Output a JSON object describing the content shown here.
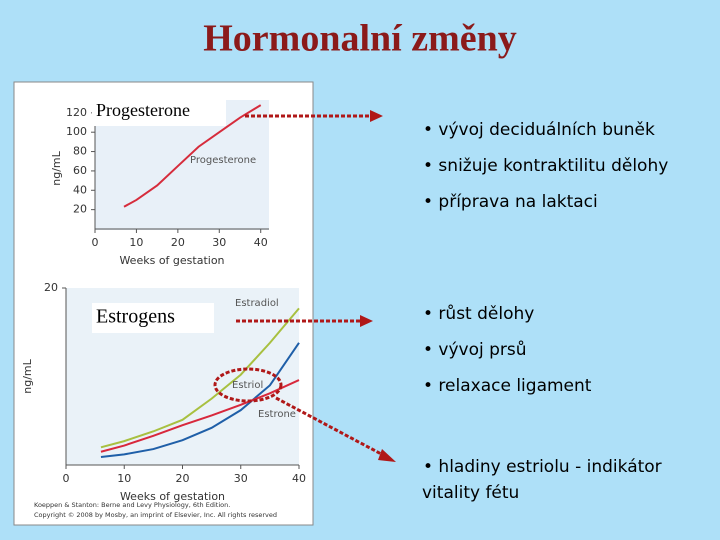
{
  "title": "Hormonalní změny",
  "chart_data": [
    {
      "type": "line",
      "x": [
        7,
        10,
        15,
        20,
        25,
        30,
        35,
        40
      ],
      "xlim": [
        0,
        42
      ],
      "xticks": [
        0,
        10,
        20,
        30,
        40
      ],
      "ylim": [
        0,
        125
      ],
      "yticks": [
        20,
        40,
        60,
        80,
        100,
        120
      ],
      "x_label": "Weeks of gestation",
      "y_label": "ng/mL",
      "series": [
        {
          "name": "Progesterone",
          "color": "#d62c3c",
          "values": [
            23,
            30,
            45,
            65,
            85,
            100,
            115,
            128
          ]
        }
      ]
    },
    {
      "type": "line",
      "x": [
        6,
        10,
        15,
        20,
        25,
        30,
        35,
        40
      ],
      "xlim": [
        0,
        40
      ],
      "xticks": [
        0,
        10,
        20,
        30,
        40
      ],
      "ylim": [
        0,
        20
      ],
      "yticks": [
        20
      ],
      "x_label": "Weeks of gestation",
      "y_label": "ng/mL",
      "series": [
        {
          "name": "Estradiol",
          "color": "#a8c040",
          "values": [
            2.0,
            2.7,
            3.8,
            5.1,
            7.5,
            10.2,
            13.8,
            17.7
          ]
        },
        {
          "name": "Estriol",
          "color": "#1f5fa8",
          "values": [
            0.9,
            1.2,
            1.8,
            2.8,
            4.2,
            6.2,
            9.0,
            13.8
          ]
        },
        {
          "name": "Estrone",
          "color": "#d8283c",
          "values": [
            1.5,
            2.2,
            3.3,
            4.5,
            5.6,
            6.8,
            8.1,
            9.6
          ]
        }
      ]
    }
  ],
  "labels": [
    "Progesterone",
    "Estrogens"
  ],
  "credits": [
    "Koeppen & Stanton: Berne and Levy Physiology, 6th Edition.",
    "Copyright © 2008 by Mosby, an imprint of Elsevier, Inc. All rights reserved"
  ],
  "bullet_groups": [
    [
      "• vývoj deciduálních buněk",
      "• snižuje kontraktilitu dělohy",
      "• příprava na laktaci"
    ],
    [
      "• růst dělohy",
      "• vývoj prsů",
      "• relaxace ligament"
    ],
    [
      "• hladiny estriolu - indikátor",
      "vitality fétu"
    ]
  ]
}
